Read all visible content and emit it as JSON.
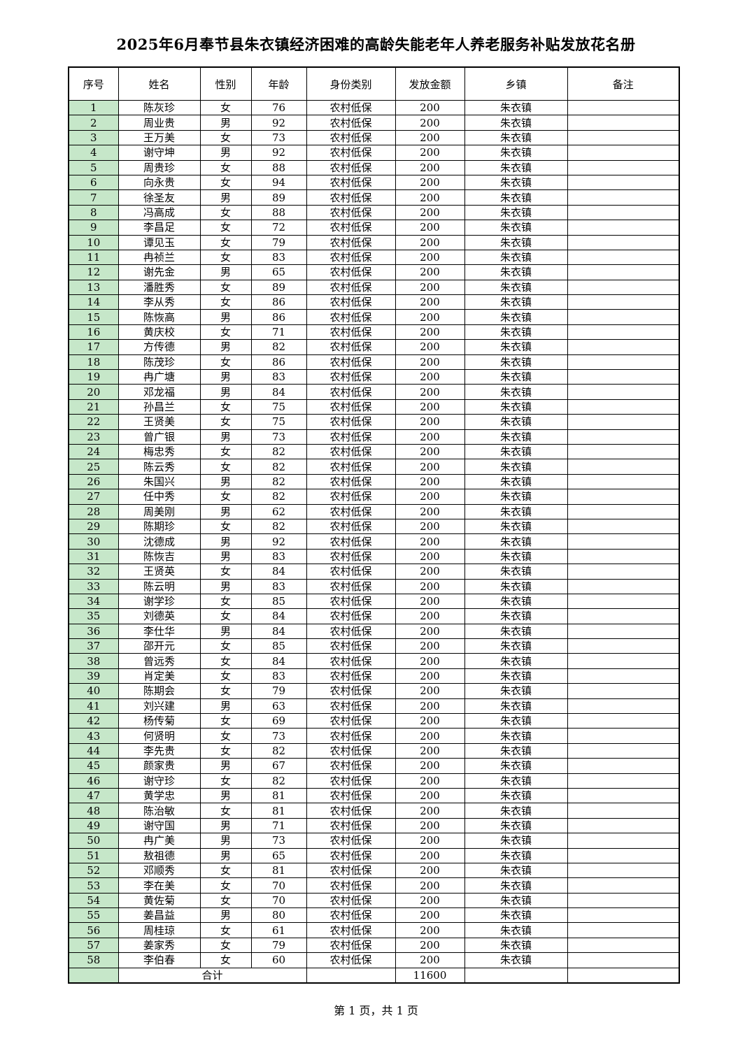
{
  "title": "2025年6月奉节县朱衣镇经济困难的高龄失能老年人养老服务补贴发放花名册",
  "columns": [
    "序号",
    "姓名",
    "性别",
    "年龄",
    "身份类别",
    "发放金额",
    "乡镇",
    "备注"
  ],
  "colors": {
    "seq_column_bg": "#c6e7c9"
  },
  "rows": [
    [
      "1",
      "陈灰珍",
      "女",
      "76",
      "农村低保",
      "200",
      "朱衣镇",
      ""
    ],
    [
      "2",
      "周业贵",
      "男",
      "92",
      "农村低保",
      "200",
      "朱衣镇",
      ""
    ],
    [
      "3",
      "王万美",
      "女",
      "73",
      "农村低保",
      "200",
      "朱衣镇",
      ""
    ],
    [
      "4",
      "谢守坤",
      "男",
      "92",
      "农村低保",
      "200",
      "朱衣镇",
      ""
    ],
    [
      "5",
      "周贵珍",
      "女",
      "88",
      "农村低保",
      "200",
      "朱衣镇",
      ""
    ],
    [
      "6",
      "向永贵",
      "女",
      "94",
      "农村低保",
      "200",
      "朱衣镇",
      ""
    ],
    [
      "7",
      "徐圣友",
      "男",
      "89",
      "农村低保",
      "200",
      "朱衣镇",
      ""
    ],
    [
      "8",
      "冯高成",
      "女",
      "88",
      "农村低保",
      "200",
      "朱衣镇",
      ""
    ],
    [
      "9",
      "李昌足",
      "女",
      "72",
      "农村低保",
      "200",
      "朱衣镇",
      ""
    ],
    [
      "10",
      "谭见玉",
      "女",
      "79",
      "农村低保",
      "200",
      "朱衣镇",
      ""
    ],
    [
      "11",
      "冉祯兰",
      "女",
      "83",
      "农村低保",
      "200",
      "朱衣镇",
      ""
    ],
    [
      "12",
      "谢先金",
      "男",
      "65",
      "农村低保",
      "200",
      "朱衣镇",
      ""
    ],
    [
      "13",
      "潘胜秀",
      "女",
      "89",
      "农村低保",
      "200",
      "朱衣镇",
      ""
    ],
    [
      "14",
      "李从秀",
      "女",
      "86",
      "农村低保",
      "200",
      "朱衣镇",
      ""
    ],
    [
      "15",
      "陈恢高",
      "男",
      "86",
      "农村低保",
      "200",
      "朱衣镇",
      ""
    ],
    [
      "16",
      "黄庆校",
      "女",
      "71",
      "农村低保",
      "200",
      "朱衣镇",
      ""
    ],
    [
      "17",
      "方传德",
      "男",
      "82",
      "农村低保",
      "200",
      "朱衣镇",
      ""
    ],
    [
      "18",
      "陈茂珍",
      "女",
      "86",
      "农村低保",
      "200",
      "朱衣镇",
      ""
    ],
    [
      "19",
      "冉广塘",
      "男",
      "83",
      "农村低保",
      "200",
      "朱衣镇",
      ""
    ],
    [
      "20",
      "邓龙福",
      "男",
      "84",
      "农村低保",
      "200",
      "朱衣镇",
      ""
    ],
    [
      "21",
      "孙昌兰",
      "女",
      "75",
      "农村低保",
      "200",
      "朱衣镇",
      ""
    ],
    [
      "22",
      "王贤美",
      "女",
      "75",
      "农村低保",
      "200",
      "朱衣镇",
      ""
    ],
    [
      "23",
      "曾广银",
      "男",
      "73",
      "农村低保",
      "200",
      "朱衣镇",
      ""
    ],
    [
      "24",
      "梅忠秀",
      "女",
      "82",
      "农村低保",
      "200",
      "朱衣镇",
      ""
    ],
    [
      "25",
      "陈云秀",
      "女",
      "82",
      "农村低保",
      "200",
      "朱衣镇",
      ""
    ],
    [
      "26",
      "朱国兴",
      "男",
      "82",
      "农村低保",
      "200",
      "朱衣镇",
      ""
    ],
    [
      "27",
      "任中秀",
      "女",
      "82",
      "农村低保",
      "200",
      "朱衣镇",
      ""
    ],
    [
      "28",
      "周美刚",
      "男",
      "62",
      "农村低保",
      "200",
      "朱衣镇",
      ""
    ],
    [
      "29",
      "陈期珍",
      "女",
      "82",
      "农村低保",
      "200",
      "朱衣镇",
      ""
    ],
    [
      "30",
      "沈德成",
      "男",
      "92",
      "农村低保",
      "200",
      "朱衣镇",
      ""
    ],
    [
      "31",
      "陈恢吉",
      "男",
      "83",
      "农村低保",
      "200",
      "朱衣镇",
      ""
    ],
    [
      "32",
      "王贤英",
      "女",
      "84",
      "农村低保",
      "200",
      "朱衣镇",
      ""
    ],
    [
      "33",
      "陈云明",
      "男",
      "83",
      "农村低保",
      "200",
      "朱衣镇",
      ""
    ],
    [
      "34",
      "谢学珍",
      "女",
      "85",
      "农村低保",
      "200",
      "朱衣镇",
      ""
    ],
    [
      "35",
      "刘德英",
      "女",
      "84",
      "农村低保",
      "200",
      "朱衣镇",
      ""
    ],
    [
      "36",
      "李仕华",
      "男",
      "84",
      "农村低保",
      "200",
      "朱衣镇",
      ""
    ],
    [
      "37",
      "邵开元",
      "女",
      "85",
      "农村低保",
      "200",
      "朱衣镇",
      ""
    ],
    [
      "38",
      "曾远秀",
      "女",
      "84",
      "农村低保",
      "200",
      "朱衣镇",
      ""
    ],
    [
      "39",
      "肖定美",
      "女",
      "83",
      "农村低保",
      "200",
      "朱衣镇",
      ""
    ],
    [
      "40",
      "陈期会",
      "女",
      "79",
      "农村低保",
      "200",
      "朱衣镇",
      ""
    ],
    [
      "41",
      "刘兴建",
      "男",
      "63",
      "农村低保",
      "200",
      "朱衣镇",
      ""
    ],
    [
      "42",
      "杨传菊",
      "女",
      "69",
      "农村低保",
      "200",
      "朱衣镇",
      ""
    ],
    [
      "43",
      "何贤明",
      "女",
      "73",
      "农村低保",
      "200",
      "朱衣镇",
      ""
    ],
    [
      "44",
      "李先贵",
      "女",
      "82",
      "农村低保",
      "200",
      "朱衣镇",
      ""
    ],
    [
      "45",
      "颜家贵",
      "男",
      "67",
      "农村低保",
      "200",
      "朱衣镇",
      ""
    ],
    [
      "46",
      "谢守珍",
      "女",
      "82",
      "农村低保",
      "200",
      "朱衣镇",
      ""
    ],
    [
      "47",
      "黄学忠",
      "男",
      "81",
      "农村低保",
      "200",
      "朱衣镇",
      ""
    ],
    [
      "48",
      "陈治敏",
      "女",
      "81",
      "农村低保",
      "200",
      "朱衣镇",
      ""
    ],
    [
      "49",
      "谢守国",
      "男",
      "71",
      "农村低保",
      "200",
      "朱衣镇",
      ""
    ],
    [
      "50",
      "冉广美",
      "男",
      "73",
      "农村低保",
      "200",
      "朱衣镇",
      ""
    ],
    [
      "51",
      "敖祖德",
      "男",
      "65",
      "农村低保",
      "200",
      "朱衣镇",
      ""
    ],
    [
      "52",
      "邓顺秀",
      "女",
      "81",
      "农村低保",
      "200",
      "朱衣镇",
      ""
    ],
    [
      "53",
      "李在美",
      "女",
      "70",
      "农村低保",
      "200",
      "朱衣镇",
      ""
    ],
    [
      "54",
      "黄佐菊",
      "女",
      "70",
      "农村低保",
      "200",
      "朱衣镇",
      ""
    ],
    [
      "55",
      "姜昌益",
      "男",
      "80",
      "农村低保",
      "200",
      "朱衣镇",
      ""
    ],
    [
      "56",
      "周桂琼",
      "女",
      "61",
      "农村低保",
      "200",
      "朱衣镇",
      ""
    ],
    [
      "57",
      "姜家秀",
      "女",
      "79",
      "农村低保",
      "200",
      "朱衣镇",
      ""
    ],
    [
      "58",
      "李伯春",
      "女",
      "60",
      "农村低保",
      "200",
      "朱衣镇",
      ""
    ]
  ],
  "total": {
    "label": "合计",
    "amount": "11600"
  },
  "footer": "第 1 页，共 1 页"
}
